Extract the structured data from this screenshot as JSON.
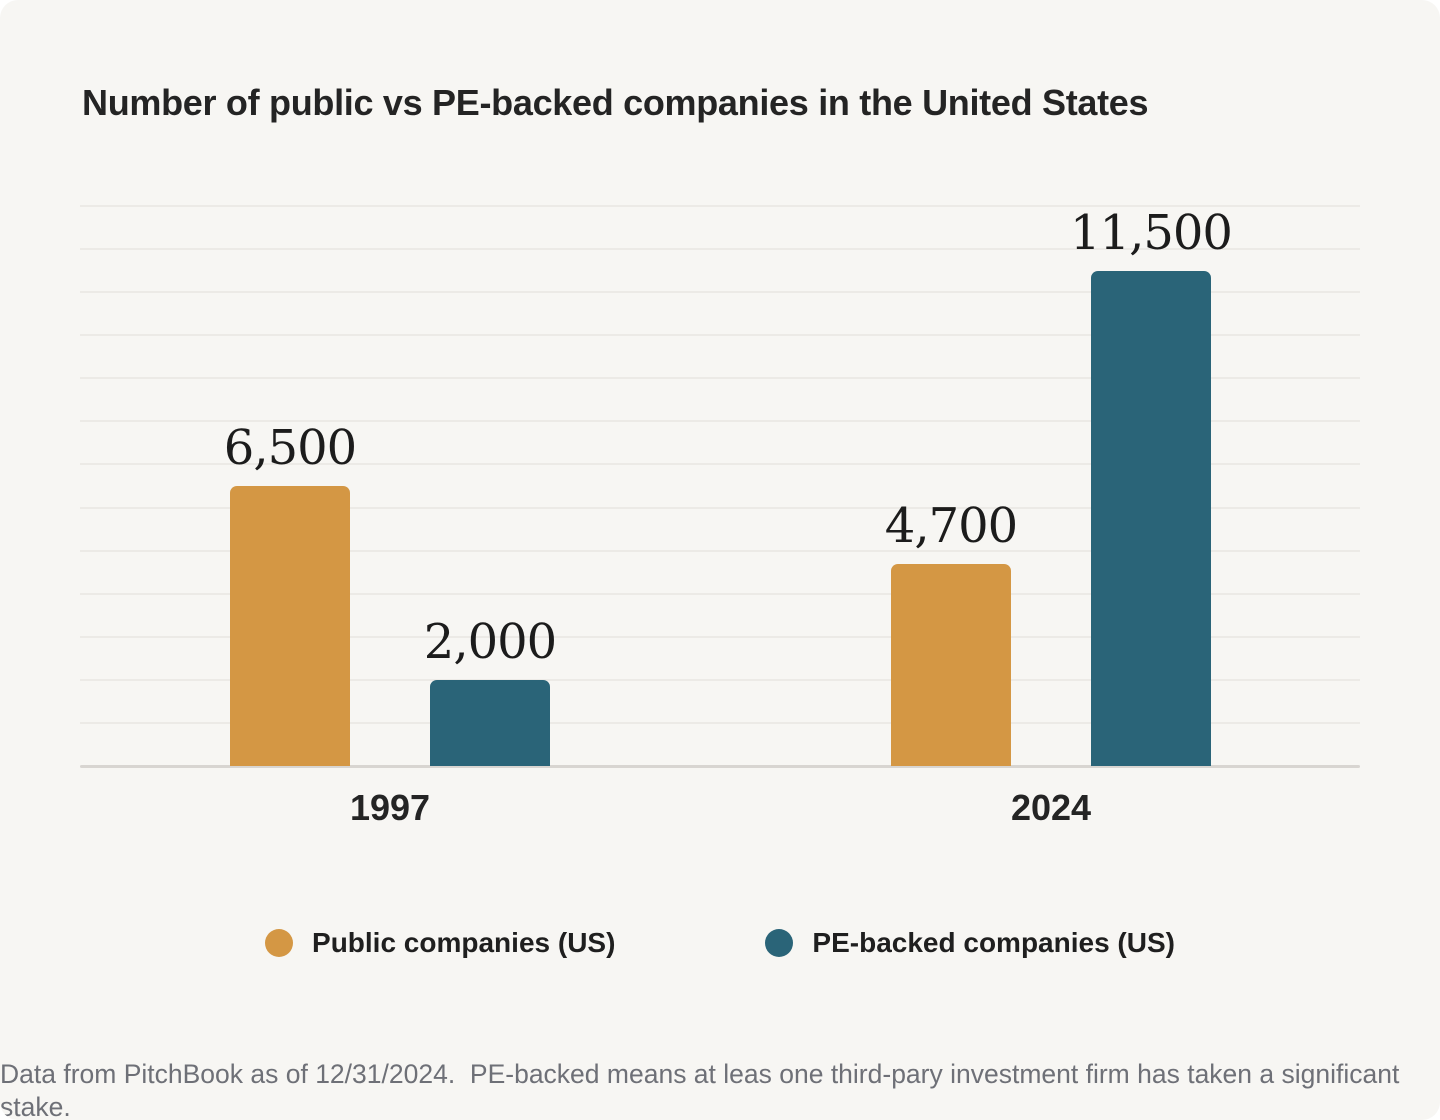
{
  "chart_data": {
    "type": "bar",
    "title": "Number of public vs PE-backed companies in the United States",
    "categories": [
      "1997",
      "2024"
    ],
    "series": [
      {
        "key": "public",
        "name": "Public companies (US)",
        "color": "#D49744",
        "values": [
          6500,
          4700
        ],
        "labels": [
          "6,500",
          "4,700"
        ]
      },
      {
        "key": "pe",
        "name": "PE-backed companies (US)",
        "color": "#2A6478",
        "values": [
          2000,
          11500
        ],
        "labels": [
          "2,000",
          "11,500"
        ]
      }
    ],
    "xlabel": "",
    "ylabel": "",
    "ylim": [
      0,
      13000
    ],
    "gridline_step": 1000,
    "grid": true,
    "grid_color": "#ECEAE6",
    "axis_line_color": "#D8D5D1",
    "background": "#F7F6F3",
    "value_label_color": "#1C1C1C",
    "legend_position": "bottom"
  },
  "footer": {
    "note": "Data from PitchBook as of 12/31/2024.  PE-backed means at leas one third-pary investment firm has taken a significant stake."
  }
}
